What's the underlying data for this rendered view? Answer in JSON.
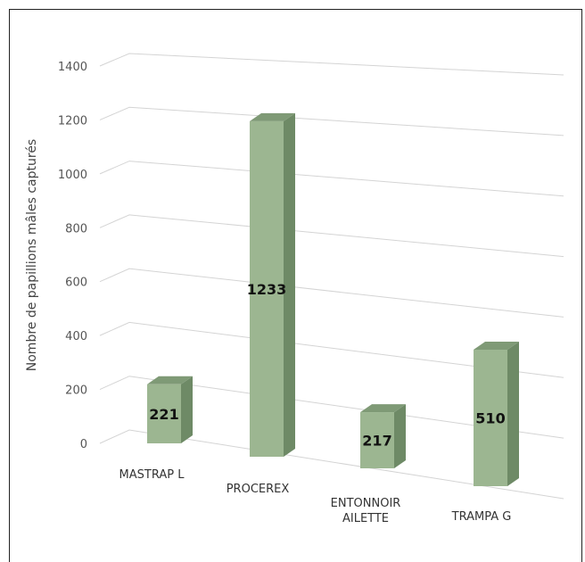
{
  "chart_data": {
    "type": "bar",
    "ylabel": "Nombre de papillions mâles capturés",
    "xlabel": "",
    "ylim": [
      0,
      1400
    ],
    "yticks": [
      0,
      200,
      400,
      600,
      800,
      1000,
      1200,
      1400
    ],
    "categories": [
      [
        "MASTRAP L"
      ],
      [
        "PROCEREX"
      ],
      [
        "ENTONNOIR",
        "AILETTE"
      ],
      [
        "TRAMPA G"
      ]
    ],
    "values": [
      221,
      1233,
      217,
      510
    ],
    "data_labels": [
      "221",
      "1233",
      "217",
      "510"
    ],
    "bar_color": "#9cb691",
    "grid": true,
    "legend": "none"
  }
}
